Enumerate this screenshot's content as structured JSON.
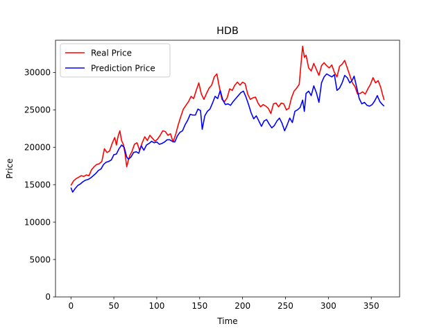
{
  "chart_data": {
    "type": "line",
    "title": "HDB",
    "xlabel": "Time",
    "ylabel": "Price",
    "xlim": [
      -18,
      383
    ],
    "ylim": [
      0,
      34300
    ],
    "xticks": [
      0,
      50,
      100,
      150,
      200,
      250,
      300,
      350
    ],
    "yticks": [
      0,
      5000,
      10000,
      15000,
      20000,
      25000,
      30000
    ],
    "legend_position": "top-left",
    "grid": false,
    "series": [
      {
        "name": "Real Price",
        "color": "#ff0000",
        "points": [
          [
            0,
            14900
          ],
          [
            3,
            15500
          ],
          [
            6,
            15800
          ],
          [
            9,
            16000
          ],
          [
            12,
            16200
          ],
          [
            15,
            16100
          ],
          [
            18,
            16300
          ],
          [
            21,
            16200
          ],
          [
            24,
            17000
          ],
          [
            27,
            17400
          ],
          [
            30,
            17700
          ],
          [
            33,
            17800
          ],
          [
            36,
            18100
          ],
          [
            39,
            19800
          ],
          [
            42,
            19300
          ],
          [
            45,
            19500
          ],
          [
            48,
            20500
          ],
          [
            51,
            21300
          ],
          [
            53,
            20300
          ],
          [
            55,
            21500
          ],
          [
            57,
            22200
          ],
          [
            59,
            20900
          ],
          [
            61,
            20400
          ],
          [
            63,
            19200
          ],
          [
            65,
            17400
          ],
          [
            67,
            18300
          ],
          [
            69,
            19000
          ],
          [
            71,
            19400
          ],
          [
            74,
            20400
          ],
          [
            77,
            20600
          ],
          [
            80,
            19600
          ],
          [
            83,
            20600
          ],
          [
            86,
            21400
          ],
          [
            89,
            20900
          ],
          [
            92,
            21600
          ],
          [
            95,
            21200
          ],
          [
            98,
            20800
          ],
          [
            101,
            21100
          ],
          [
            104,
            21600
          ],
          [
            107,
            22200
          ],
          [
            110,
            22100
          ],
          [
            113,
            21600
          ],
          [
            116,
            21800
          ],
          [
            119,
            20700
          ],
          [
            122,
            21700
          ],
          [
            125,
            23000
          ],
          [
            128,
            24100
          ],
          [
            131,
            25100
          ],
          [
            134,
            25600
          ],
          [
            137,
            26100
          ],
          [
            140,
            26800
          ],
          [
            143,
            26500
          ],
          [
            146,
            27600
          ],
          [
            149,
            28600
          ],
          [
            152,
            27100
          ],
          [
            155,
            26400
          ],
          [
            158,
            27200
          ],
          [
            161,
            27900
          ],
          [
            164,
            28300
          ],
          [
            167,
            29400
          ],
          [
            170,
            29800
          ],
          [
            173,
            28000
          ],
          [
            176,
            26400
          ],
          [
            179,
            26100
          ],
          [
            182,
            26600
          ],
          [
            185,
            27800
          ],
          [
            188,
            27600
          ],
          [
            191,
            28300
          ],
          [
            194,
            28700
          ],
          [
            197,
            28300
          ],
          [
            200,
            28700
          ],
          [
            203,
            28500
          ],
          [
            206,
            27100
          ],
          [
            209,
            26400
          ],
          [
            212,
            26600
          ],
          [
            215,
            26700
          ],
          [
            218,
            25900
          ],
          [
            221,
            25400
          ],
          [
            224,
            25700
          ],
          [
            227,
            25500
          ],
          [
            230,
            25200
          ],
          [
            233,
            24500
          ],
          [
            236,
            25800
          ],
          [
            239,
            25900
          ],
          [
            242,
            25400
          ],
          [
            245,
            25900
          ],
          [
            248,
            25800
          ],
          [
            251,
            25000
          ],
          [
            254,
            25200
          ],
          [
            257,
            26600
          ],
          [
            260,
            27500
          ],
          [
            263,
            27900
          ],
          [
            266,
            28400
          ],
          [
            268,
            31000
          ],
          [
            270,
            33500
          ],
          [
            272,
            32000
          ],
          [
            274,
            32300
          ],
          [
            277,
            30600
          ],
          [
            280,
            30200
          ],
          [
            283,
            31200
          ],
          [
            286,
            30400
          ],
          [
            289,
            29600
          ],
          [
            292,
            30900
          ],
          [
            295,
            31300
          ],
          [
            298,
            30900
          ],
          [
            301,
            30600
          ],
          [
            304,
            31000
          ],
          [
            307,
            30000
          ],
          [
            310,
            29400
          ],
          [
            313,
            30800
          ],
          [
            316,
            31100
          ],
          [
            319,
            31600
          ],
          [
            322,
            30600
          ],
          [
            325,
            29600
          ],
          [
            328,
            28600
          ],
          [
            331,
            28100
          ],
          [
            334,
            27100
          ],
          [
            337,
            27200
          ],
          [
            340,
            27400
          ],
          [
            343,
            27100
          ],
          [
            346,
            27800
          ],
          [
            349,
            28400
          ],
          [
            352,
            29300
          ],
          [
            355,
            28600
          ],
          [
            358,
            28900
          ],
          [
            361,
            28000
          ],
          [
            363,
            27100
          ],
          [
            365,
            26300
          ]
        ]
      },
      {
        "name": "Prediction Price",
        "color": "#0000ff",
        "points": [
          [
            0,
            14600
          ],
          [
            2,
            14000
          ],
          [
            5,
            14500
          ],
          [
            8,
            14900
          ],
          [
            11,
            15100
          ],
          [
            14,
            15400
          ],
          [
            17,
            15600
          ],
          [
            20,
            15700
          ],
          [
            23,
            15900
          ],
          [
            26,
            16200
          ],
          [
            29,
            16500
          ],
          [
            32,
            16900
          ],
          [
            35,
            17100
          ],
          [
            38,
            17700
          ],
          [
            41,
            18000
          ],
          [
            44,
            18100
          ],
          [
            47,
            18300
          ],
          [
            50,
            19000
          ],
          [
            53,
            19100
          ],
          [
            56,
            19800
          ],
          [
            59,
            20300
          ],
          [
            62,
            20000
          ],
          [
            65,
            18700
          ],
          [
            67,
            18400
          ],
          [
            70,
            18700
          ],
          [
            73,
            19300
          ],
          [
            76,
            19400
          ],
          [
            79,
            19200
          ],
          [
            82,
            20200
          ],
          [
            85,
            19600
          ],
          [
            88,
            20300
          ],
          [
            91,
            20500
          ],
          [
            94,
            20800
          ],
          [
            97,
            20600
          ],
          [
            100,
            20700
          ],
          [
            103,
            20400
          ],
          [
            106,
            20500
          ],
          [
            109,
            20700
          ],
          [
            112,
            21000
          ],
          [
            115,
            21000
          ],
          [
            118,
            20800
          ],
          [
            121,
            20700
          ],
          [
            124,
            21500
          ],
          [
            127,
            22000
          ],
          [
            130,
            22200
          ],
          [
            133,
            23000
          ],
          [
            136,
            23600
          ],
          [
            139,
            24400
          ],
          [
            142,
            24300
          ],
          [
            145,
            24300
          ],
          [
            148,
            25100
          ],
          [
            151,
            24900
          ],
          [
            153,
            22400
          ],
          [
            156,
            24200
          ],
          [
            159,
            24800
          ],
          [
            162,
            25100
          ],
          [
            165,
            25900
          ],
          [
            168,
            26800
          ],
          [
            171,
            26500
          ],
          [
            174,
            27600
          ],
          [
            177,
            26300
          ],
          [
            180,
            25700
          ],
          [
            183,
            25800
          ],
          [
            186,
            25600
          ],
          [
            189,
            26100
          ],
          [
            192,
            26500
          ],
          [
            195,
            26900
          ],
          [
            198,
            27300
          ],
          [
            201,
            27500
          ],
          [
            204,
            26700
          ],
          [
            207,
            25700
          ],
          [
            210,
            24600
          ],
          [
            213,
            23800
          ],
          [
            216,
            24200
          ],
          [
            219,
            23500
          ],
          [
            222,
            22800
          ],
          [
            225,
            23500
          ],
          [
            228,
            23700
          ],
          [
            231,
            23100
          ],
          [
            234,
            22600
          ],
          [
            237,
            22900
          ],
          [
            240,
            23500
          ],
          [
            243,
            23900
          ],
          [
            246,
            23200
          ],
          [
            249,
            22200
          ],
          [
            252,
            23000
          ],
          [
            255,
            23900
          ],
          [
            258,
            23300
          ],
          [
            261,
            24800
          ],
          [
            264,
            25000
          ],
          [
            267,
            25300
          ],
          [
            270,
            26300
          ],
          [
            272,
            24800
          ],
          [
            274,
            27200
          ],
          [
            277,
            27500
          ],
          [
            280,
            26900
          ],
          [
            283,
            28200
          ],
          [
            286,
            27300
          ],
          [
            289,
            26000
          ],
          [
            292,
            28600
          ],
          [
            295,
            29400
          ],
          [
            298,
            29800
          ],
          [
            301,
            29600
          ],
          [
            304,
            29400
          ],
          [
            307,
            29700
          ],
          [
            310,
            27600
          ],
          [
            313,
            27900
          ],
          [
            316,
            28600
          ],
          [
            319,
            29600
          ],
          [
            322,
            29300
          ],
          [
            325,
            28600
          ],
          [
            328,
            29000
          ],
          [
            330,
            29500
          ],
          [
            333,
            28000
          ],
          [
            336,
            26500
          ],
          [
            339,
            25800
          ],
          [
            342,
            26000
          ],
          [
            345,
            25600
          ],
          [
            348,
            25500
          ],
          [
            351,
            25700
          ],
          [
            354,
            26200
          ],
          [
            357,
            26900
          ],
          [
            360,
            26100
          ],
          [
            363,
            25700
          ],
          [
            365,
            25500
          ]
        ]
      }
    ]
  }
}
